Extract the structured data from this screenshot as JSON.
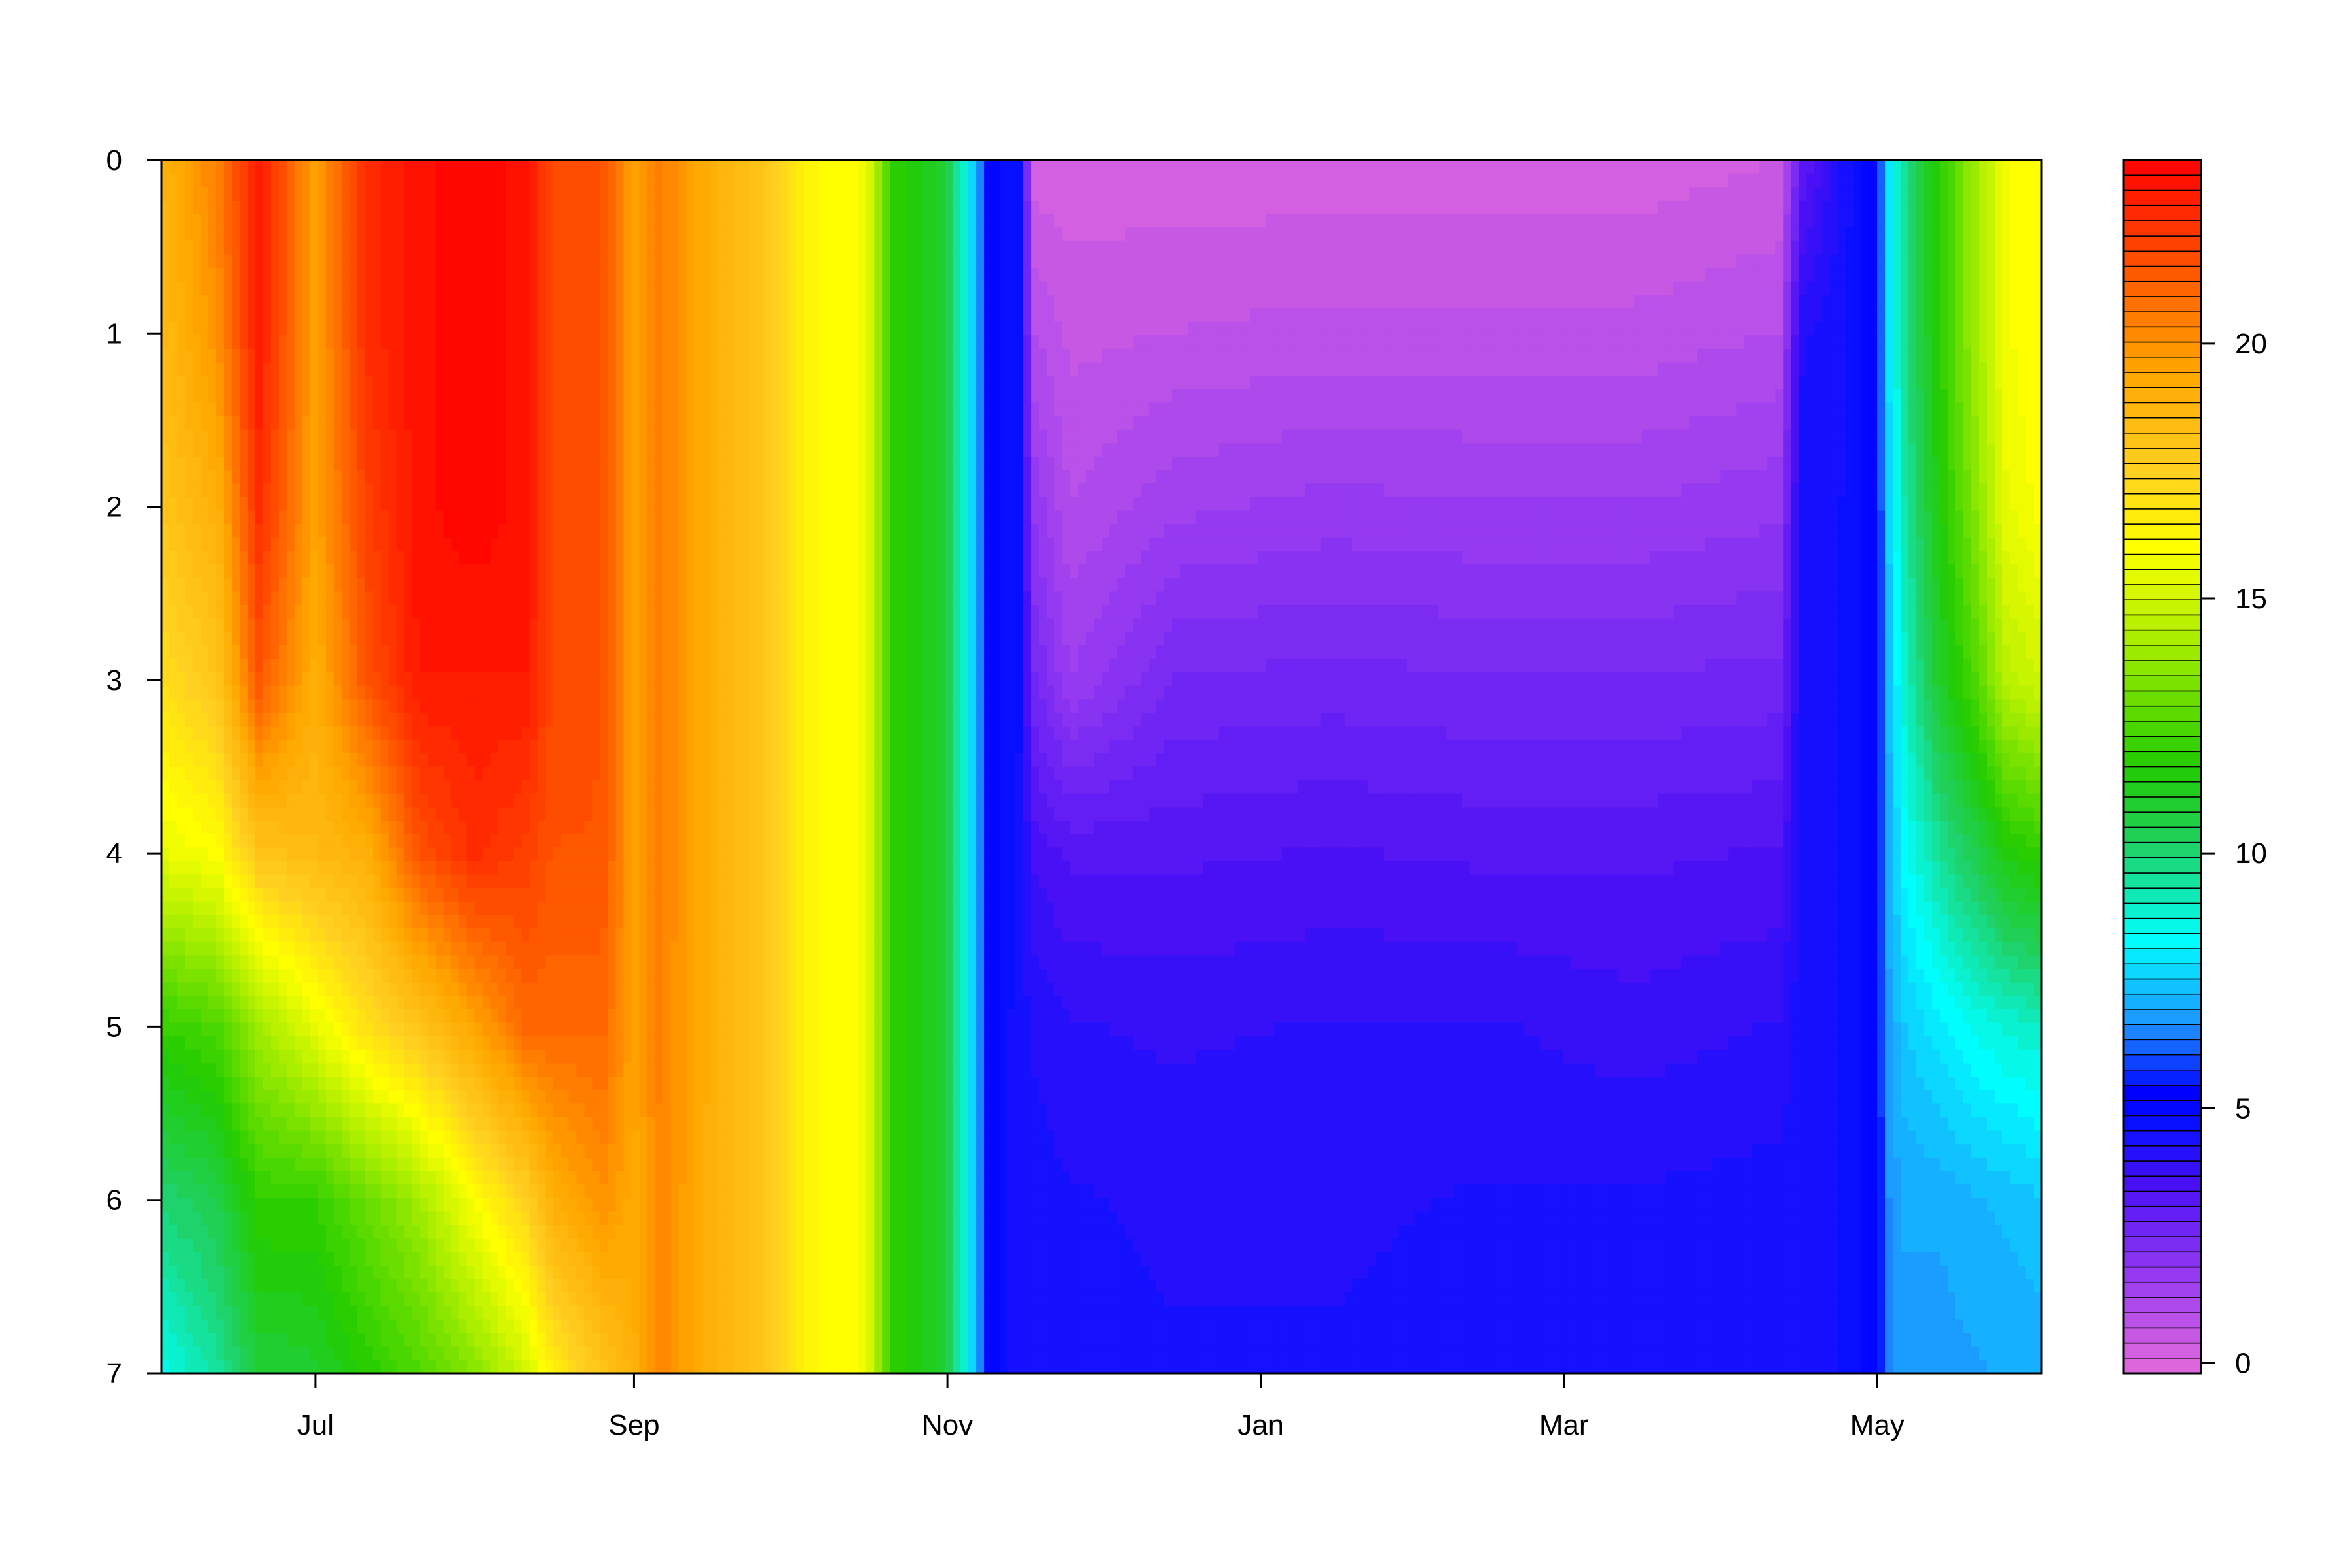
{
  "chart_data": {
    "type": "heatmap",
    "title": "",
    "xlabel": "",
    "ylabel": "",
    "x_ticks": [
      {
        "label": "Jul",
        "date": "2022-07-01"
      },
      {
        "label": "Sep",
        "date": "2022-09-01"
      },
      {
        "label": "Nov",
        "date": "2022-11-01"
      },
      {
        "label": "Jan",
        "date": "2023-01-01"
      },
      {
        "label": "Mar",
        "date": "2023-03-01"
      },
      {
        "label": "May",
        "date": "2023-05-01"
      }
    ],
    "x_range": [
      "2022-06-01",
      "2023-06-02"
    ],
    "y_ticks": [
      "0",
      "1",
      "2",
      "3",
      "4",
      "5",
      "6",
      "7"
    ],
    "y_range": [
      0,
      7
    ],
    "y_reversed": true,
    "colorbar": {
      "ticks": [
        "0",
        "5",
        "10",
        "15",
        "20"
      ],
      "range": [
        -0.2,
        23.6
      ],
      "levels": 80,
      "palette": [
        "#dd66dd",
        "#9f40f0",
        "#4a10f5",
        "#0a10ff",
        "#0000ff",
        "#1e90ff",
        "#00ffff",
        "#20d060",
        "#22cc00",
        "#aaee00",
        "#ffff00",
        "#ffd020",
        "#ffa500",
        "#ff6000",
        "#ff0000"
      ],
      "palette_stops": [
        0,
        1.5,
        3.5,
        4.6,
        5.3,
        6.6,
        8.3,
        10.2,
        11.7,
        14.2,
        16.0,
        17.5,
        19.5,
        21.2,
        23.6
      ]
    },
    "depth_profile": {
      "depths": [
        0,
        1,
        2,
        3,
        4,
        5,
        6,
        7
      ],
      "columns": [
        {
          "date": "2022-06-01",
          "values": [
            18.8,
            18.5,
            18.0,
            17.0,
            15.5,
            12.0,
            10.0,
            8.5
          ]
        },
        {
          "date": "2022-06-12",
          "values": [
            20.5,
            20.0,
            19.0,
            18.0,
            16.0,
            12.5,
            10.5,
            9.5
          ]
        },
        {
          "date": "2022-06-20",
          "values": [
            23.0,
            23.0,
            22.5,
            21.5,
            18.0,
            14.0,
            12.0,
            10.8
          ]
        },
        {
          "date": "2022-07-01",
          "values": [
            19.5,
            19.5,
            19.5,
            19.0,
            18.5,
            15.5,
            12.0,
            11.0
          ]
        },
        {
          "date": "2022-07-11",
          "values": [
            22.5,
            22.5,
            22.0,
            21.5,
            19.0,
            17.0,
            13.0,
            11.8
          ]
        },
        {
          "date": "2022-07-21",
          "values": [
            23.2,
            23.2,
            23.2,
            23.0,
            21.5,
            18.0,
            14.0,
            12.5
          ]
        },
        {
          "date": "2022-08-01",
          "values": [
            23.5,
            23.5,
            23.5,
            23.0,
            22.5,
            19.5,
            16.0,
            13.5
          ]
        },
        {
          "date": "2022-08-11",
          "values": [
            23.2,
            23.2,
            23.2,
            23.0,
            22.0,
            21.0,
            17.5,
            15.0
          ]
        },
        {
          "date": "2022-08-16",
          "values": [
            21.8,
            21.8,
            21.8,
            21.8,
            21.5,
            21.0,
            19.0,
            16.5
          ]
        },
        {
          "date": "2022-08-26",
          "values": [
            21.5,
            21.5,
            21.5,
            21.5,
            21.5,
            21.0,
            20.0,
            18.0
          ]
        },
        {
          "date": "2022-09-01",
          "values": [
            19.5,
            19.5,
            19.5,
            19.5,
            19.5,
            19.5,
            19.3,
            19.0
          ]
        },
        {
          "date": "2022-09-06",
          "values": [
            20.5,
            20.5,
            20.5,
            20.5,
            20.5,
            20.4,
            20.3,
            20.2
          ]
        },
        {
          "date": "2022-09-16",
          "values": [
            19.0,
            19.0,
            19.0,
            19.0,
            19.0,
            19.0,
            19.0,
            19.0
          ]
        },
        {
          "date": "2022-09-26",
          "values": [
            18.0,
            18.0,
            18.0,
            18.0,
            18.0,
            18.0,
            18.0,
            18.0
          ]
        },
        {
          "date": "2022-10-06",
          "values": [
            16.2,
            16.2,
            16.2,
            16.2,
            16.2,
            16.2,
            16.2,
            16.2
          ]
        },
        {
          "date": "2022-10-16",
          "values": [
            15.8,
            15.8,
            15.8,
            15.8,
            15.8,
            15.8,
            15.8,
            15.8
          ]
        },
        {
          "date": "2022-10-21",
          "values": [
            12.0,
            12.0,
            12.0,
            12.0,
            12.0,
            12.0,
            12.0,
            12.0
          ]
        },
        {
          "date": "2022-10-31",
          "values": [
            11.0,
            11.0,
            11.0,
            11.0,
            11.0,
            11.0,
            11.0,
            11.0
          ]
        },
        {
          "date": "2022-11-05",
          "values": [
            8.5,
            8.5,
            8.5,
            8.5,
            8.5,
            8.5,
            8.5,
            8.5
          ]
        },
        {
          "date": "2022-11-09",
          "values": [
            5.0,
            5.0,
            5.0,
            5.0,
            5.0,
            5.0,
            5.0,
            5.0
          ]
        },
        {
          "date": "2022-11-15",
          "values": [
            4.6,
            4.6,
            4.6,
            4.6,
            4.5,
            4.4,
            4.4,
            4.4
          ]
        },
        {
          "date": "2022-11-18",
          "values": [
            0.2,
            1.0,
            1.8,
            2.5,
            3.6,
            4.2,
            4.4,
            4.4
          ]
        },
        {
          "date": "2022-11-25",
          "values": [
            0.2,
            0.6,
            1.0,
            1.6,
            3.3,
            4.0,
            4.3,
            4.4
          ]
        },
        {
          "date": "2022-12-15",
          "values": [
            0.2,
            0.7,
            1.5,
            2.5,
            3.3,
            3.9,
            4.2,
            4.3
          ]
        },
        {
          "date": "2023-01-15",
          "values": [
            0.2,
            0.8,
            1.7,
            2.6,
            3.4,
            4.0,
            4.2,
            4.3
          ]
        },
        {
          "date": "2023-02-15",
          "values": [
            0.2,
            0.8,
            1.6,
            2.5,
            3.3,
            4.0,
            4.3,
            4.4
          ]
        },
        {
          "date": "2023-03-15",
          "values": [
            0.2,
            0.8,
            1.6,
            2.5,
            3.3,
            3.8,
            4.3,
            4.4
          ]
        },
        {
          "date": "2023-04-12",
          "values": [
            0.4,
            1.0,
            1.8,
            2.6,
            3.4,
            4.0,
            4.4,
            4.4
          ]
        },
        {
          "date": "2023-04-16",
          "values": [
            3.0,
            4.2,
            4.4,
            4.4,
            4.4,
            4.4,
            4.4,
            4.4
          ]
        },
        {
          "date": "2023-04-26",
          "values": [
            4.6,
            4.6,
            4.6,
            4.6,
            4.6,
            4.6,
            4.6,
            4.6
          ]
        },
        {
          "date": "2023-05-01",
          "values": [
            5.2,
            5.2,
            5.2,
            5.2,
            5.2,
            5.2,
            5.2,
            5.2
          ]
        },
        {
          "date": "2023-05-03",
          "values": [
            7.8,
            7.8,
            7.5,
            7.2,
            7.0,
            6.8,
            6.6,
            6.5
          ]
        },
        {
          "date": "2023-05-06",
          "values": [
            9.5,
            9.5,
            9.2,
            8.8,
            8.2,
            7.5,
            7.0,
            6.8
          ]
        },
        {
          "date": "2023-05-13",
          "values": [
            11.8,
            11.8,
            11.5,
            11.0,
            9.5,
            8.0,
            7.0,
            6.8
          ]
        },
        {
          "date": "2023-05-20",
          "values": [
            14.0,
            14.0,
            13.5,
            12.5,
            10.5,
            8.5,
            7.2,
            6.9
          ]
        },
        {
          "date": "2023-05-26",
          "values": [
            15.8,
            15.8,
            15.5,
            14.5,
            11.5,
            8.8,
            7.3,
            7.0
          ]
        },
        {
          "date": "2023-06-02",
          "values": [
            16.2,
            16.2,
            16.0,
            15.0,
            12.0,
            9.0,
            7.5,
            7.0
          ]
        }
      ]
    }
  }
}
